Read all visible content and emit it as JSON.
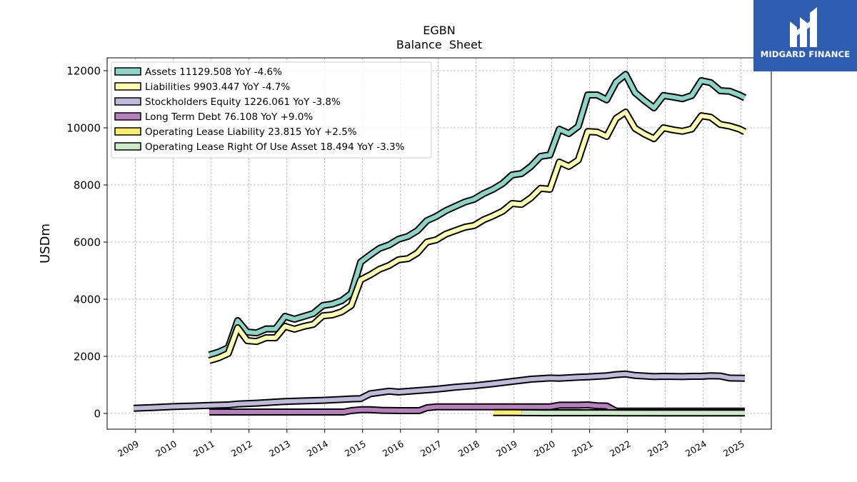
{
  "brand": {
    "name": "MIDGARD FINANCE",
    "icon": "midgard-logo-icon",
    "bg_color": "#2f5db0"
  },
  "chart_data": {
    "type": "line",
    "title": "EGBN",
    "subtitle": "Balance  Sheet",
    "xlabel": "",
    "ylabel": "USDm",
    "xlim": [
      2008.25,
      2025.8
    ],
    "ylim": [
      -550,
      12450
    ],
    "grid": true,
    "legend_position": "top-left",
    "x_ticks": [
      2009,
      2010,
      2011,
      2012,
      2013,
      2014,
      2015,
      2016,
      2017,
      2018,
      2019,
      2020,
      2021,
      2022,
      2023,
      2024,
      2025
    ],
    "x_tick_labels": [
      "2009",
      "2010",
      "2011",
      "2012",
      "2013",
      "2014",
      "2015",
      "2016",
      "2017",
      "2018",
      "2019",
      "2020",
      "2021",
      "2022",
      "2023",
      "2024",
      "2025"
    ],
    "y_ticks": [
      0,
      2000,
      4000,
      6000,
      8000,
      10000,
      12000
    ],
    "y_tick_labels": [
      "0",
      "2000",
      "4000",
      "6000",
      "8000",
      "10000",
      "12000"
    ],
    "series": [
      {
        "name": "Assets  11129.508 YoY -4.6%",
        "color": "#8dd3c7",
        "x": [
          2010.95,
          2011.2,
          2011.45,
          2011.7,
          2011.95,
          2012.2,
          2012.45,
          2012.7,
          2012.95,
          2013.2,
          2013.45,
          2013.7,
          2013.95,
          2014.2,
          2014.45,
          2014.7,
          2014.95,
          2015.2,
          2015.45,
          2015.7,
          2015.95,
          2016.2,
          2016.45,
          2016.7,
          2016.95,
          2017.2,
          2017.45,
          2017.7,
          2017.95,
          2018.2,
          2018.45,
          2018.7,
          2018.95,
          2019.2,
          2019.45,
          2019.7,
          2019.95,
          2020.2,
          2020.45,
          2020.7,
          2020.95,
          2021.2,
          2021.45,
          2021.7,
          2021.95,
          2022.2,
          2022.45,
          2022.7,
          2022.95,
          2023.2,
          2023.45,
          2023.7,
          2023.95,
          2024.2,
          2024.45,
          2024.7,
          2024.95,
          2025.1
        ],
        "values": [
          2050,
          2150,
          2300,
          3250,
          2850,
          2820,
          2960,
          2960,
          3400,
          3300,
          3400,
          3500,
          3780,
          3830,
          3950,
          4200,
          5300,
          5550,
          5780,
          5900,
          6100,
          6200,
          6400,
          6750,
          6900,
          7100,
          7250,
          7400,
          7500,
          7700,
          7850,
          8050,
          8350,
          8400,
          8650,
          9000,
          9050,
          9950,
          9800,
          10050,
          11150,
          11150,
          10980,
          11600,
          11870,
          11230,
          10950,
          10700,
          11130,
          11080,
          11020,
          11130,
          11650,
          11580,
          11300,
          11280,
          11150,
          11050
        ]
      },
      {
        "name": "Liabilities  9903.447 YoY -4.7%",
        "color": "#ffffb3",
        "x": [
          2010.95,
          2011.2,
          2011.45,
          2011.7,
          2011.95,
          2012.2,
          2012.45,
          2012.7,
          2012.95,
          2013.2,
          2013.45,
          2013.7,
          2013.95,
          2014.2,
          2014.45,
          2014.7,
          2014.95,
          2015.2,
          2015.45,
          2015.7,
          2015.95,
          2016.2,
          2016.45,
          2016.7,
          2016.95,
          2017.2,
          2017.45,
          2017.7,
          2017.95,
          2018.2,
          2018.45,
          2018.7,
          2018.95,
          2019.2,
          2019.45,
          2019.7,
          2019.95,
          2020.2,
          2020.45,
          2020.7,
          2020.95,
          2021.2,
          2021.45,
          2021.7,
          2021.95,
          2022.2,
          2022.45,
          2022.7,
          2022.95,
          2023.2,
          2023.45,
          2023.7,
          2023.95,
          2024.2,
          2024.45,
          2024.7,
          2024.95,
          2025.1
        ],
        "values": [
          1850,
          1950,
          2100,
          3000,
          2550,
          2520,
          2650,
          2650,
          3050,
          2950,
          3050,
          3120,
          3420,
          3450,
          3560,
          3780,
          4680,
          4850,
          5050,
          5180,
          5380,
          5420,
          5620,
          6000,
          6080,
          6280,
          6400,
          6520,
          6580,
          6780,
          6920,
          7080,
          7350,
          7320,
          7550,
          7880,
          7850,
          8800,
          8650,
          8870,
          9870,
          9850,
          9700,
          10330,
          10550,
          9980,
          9780,
          9620,
          10000,
          9930,
          9880,
          9960,
          10420,
          10370,
          10120,
          10060,
          9960,
          9860
        ]
      },
      {
        "name": "Stockholders Equity  1226.061 YoY -3.8%",
        "color": "#bebada",
        "x": [
          2008.95,
          2009.5,
          2010.0,
          2010.5,
          2010.95,
          2011.45,
          2011.7,
          2012.2,
          2012.7,
          2012.95,
          2013.45,
          2013.95,
          2014.45,
          2014.7,
          2014.95,
          2015.2,
          2015.7,
          2015.95,
          2016.45,
          2016.95,
          2017.45,
          2017.95,
          2018.45,
          2018.95,
          2019.45,
          2019.95,
          2020.2,
          2020.7,
          2020.95,
          2021.45,
          2021.7,
          2021.95,
          2022.2,
          2022.7,
          2022.95,
          2023.45,
          2023.7,
          2023.95,
          2024.2,
          2024.45,
          2024.7,
          2025.1
        ],
        "values": [
          180,
          210,
          240,
          260,
          280,
          300,
          330,
          360,
          400,
          420,
          440,
          460,
          490,
          510,
          520,
          690,
          780,
          750,
          800,
          850,
          920,
          970,
          1040,
          1120,
          1200,
          1240,
          1230,
          1270,
          1280,
          1320,
          1360,
          1380,
          1330,
          1290,
          1300,
          1290,
          1300,
          1300,
          1320,
          1310,
          1240,
          1230
        ]
      },
      {
        "name": "Long Term Debt  76.108 YoY +9.0%",
        "color": "#b77fbd",
        "x": [
          2010.95,
          2011.5,
          2012.0,
          2012.5,
          2013.0,
          2013.5,
          2014.0,
          2014.5,
          2014.7,
          2014.95,
          2015.2,
          2015.5,
          2016.0,
          2016.5,
          2016.7,
          2016.95,
          2017.5,
          2018.0,
          2018.5,
          2019.0,
          2019.5,
          2019.95,
          2020.2,
          2020.7,
          2020.95,
          2021.2,
          2021.45,
          2021.7,
          2022.2,
          2022.7,
          2023.2,
          2023.7,
          2024.2,
          2024.7,
          2025.1
        ],
        "values": [
          50,
          50,
          50,
          50,
          50,
          50,
          50,
          50,
          100,
          130,
          130,
          110,
          100,
          100,
          200,
          230,
          230,
          230,
          230,
          230,
          230,
          230,
          290,
          290,
          300,
          270,
          260,
          80,
          80,
          80,
          80,
          80,
          80,
          80,
          80
        ]
      },
      {
        "name": "Operating Lease Liability  23.815 YoY +2.5%",
        "color": "#ffed6f",
        "x": [
          2018.45,
          2018.7,
          2018.95,
          2019.2,
          2019.45,
          2019.95,
          2020.45,
          2020.95,
          2021.45,
          2021.95,
          2022.45,
          2022.95,
          2023.45,
          2023.95,
          2024.45,
          2025.1
        ],
        "values": [
          30,
          30,
          30,
          28,
          26,
          26,
          26,
          26,
          25,
          24,
          24,
          23,
          23,
          23,
          23,
          23
        ]
      },
      {
        "name": "Operating Lease Right Of Use Asset  18.494 YoY -3.3%",
        "color": "#ccebc5",
        "x": [
          2019.2,
          2019.45,
          2019.95,
          2020.45,
          2020.95,
          2021.45,
          2021.95,
          2022.45,
          2022.95,
          2023.45,
          2023.95,
          2024.45,
          2025.1
        ],
        "values": [
          25,
          24,
          23,
          23,
          22,
          22,
          21,
          20,
          20,
          19,
          19,
          18,
          18
        ]
      }
    ]
  }
}
